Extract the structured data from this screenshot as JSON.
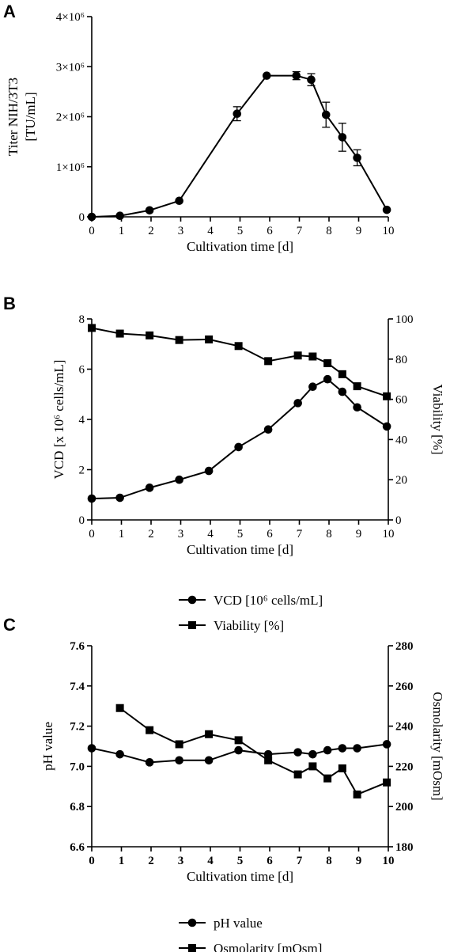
{
  "chart_data": [
    {
      "panel": "A",
      "type": "line",
      "xlabel": "Cultivation time [d]",
      "ylabel_lines": [
        "Titer NIH/3T3",
        "[TU/mL]"
      ],
      "xlim": [
        0,
        10
      ],
      "ylim": [
        0,
        4000000
      ],
      "xticks": [
        0,
        1,
        2,
        3,
        4,
        5,
        6,
        7,
        8,
        9,
        10
      ],
      "yticks": [
        {
          "value": 0,
          "label": "0"
        },
        {
          "value": 1000000,
          "label": "1×10⁶"
        },
        {
          "value": 2000000,
          "label": "2×10⁶"
        },
        {
          "value": 3000000,
          "label": "3×10⁶"
        },
        {
          "value": 4000000,
          "label": "4×10⁶"
        }
      ],
      "series": [
        {
          "marker": "circle",
          "x": [
            0,
            0.95,
            1.95,
            2.95,
            4.9,
            5.9,
            6.9,
            7.4,
            7.9,
            8.45,
            8.95,
            9.95
          ],
          "y": [
            0,
            20000,
            130000,
            320000,
            2060000,
            2820000,
            2820000,
            2740000,
            2040000,
            1590000,
            1180000,
            140000
          ],
          "err": [
            0,
            0,
            0,
            0,
            140000,
            0,
            80000,
            120000,
            250000,
            280000,
            160000,
            0
          ]
        }
      ]
    },
    {
      "panel": "B",
      "type": "line",
      "xlabel": "Cultivation time [d]",
      "ylabel": "VCD [x 10⁶ cells/mL]",
      "y2label": "Viability [%]",
      "xlim": [
        0,
        10
      ],
      "ylim": [
        0,
        8
      ],
      "y2lim": [
        0,
        100
      ],
      "xticks": [
        0,
        1,
        2,
        3,
        4,
        5,
        6,
        7,
        8,
        9,
        10
      ],
      "yticks": [
        0,
        2,
        4,
        6,
        8
      ],
      "y2ticks": [
        0,
        20,
        40,
        60,
        80,
        100
      ],
      "series": [
        {
          "name": "VCD [10⁶ cells/mL]",
          "marker": "circle",
          "axis": "left",
          "x": [
            0,
            0.95,
            1.95,
            2.95,
            3.95,
            4.95,
            5.95,
            6.95,
            7.45,
            7.95,
            8.45,
            8.95,
            9.95
          ],
          "y": [
            0.85,
            0.88,
            1.28,
            1.6,
            1.95,
            2.9,
            3.6,
            4.65,
            5.3,
            5.6,
            5.1,
            4.48,
            3.72
          ]
        },
        {
          "name": "Viability [%]",
          "marker": "square",
          "axis": "right",
          "x": [
            0,
            0.95,
            1.95,
            2.95,
            3.95,
            4.95,
            5.95,
            6.95,
            7.45,
            7.95,
            8.45,
            8.95,
            9.95
          ],
          "y": [
            95.5,
            92.7,
            91.8,
            89.5,
            89.8,
            86.5,
            79.0,
            81.8,
            81.3,
            78.0,
            72.5,
            66.5,
            61.5
          ]
        }
      ]
    },
    {
      "panel": "C",
      "type": "line",
      "xlabel": "Cultivation time [d]",
      "ylabel": "pH value",
      "y2label": "Osmolarity [mOsm]",
      "xlim": [
        0,
        10
      ],
      "ylim": [
        6.6,
        7.6
      ],
      "y2lim": [
        180,
        280
      ],
      "xticks": [
        0,
        1,
        2,
        3,
        4,
        5,
        6,
        7,
        8,
        9,
        10
      ],
      "yticks": [
        "6.6",
        "6.8",
        "7.0",
        "7.2",
        "7.4",
        "7.6"
      ],
      "y2ticks": [
        180,
        200,
        220,
        240,
        260,
        280
      ],
      "series": [
        {
          "name": "pH value",
          "marker": "circle",
          "axis": "left",
          "x": [
            0,
            0.95,
            1.95,
            2.95,
            3.95,
            4.95,
            5.95,
            6.95,
            7.45,
            7.95,
            8.45,
            8.95,
            9.95
          ],
          "y": [
            7.09,
            7.06,
            7.02,
            7.03,
            7.03,
            7.08,
            7.06,
            7.07,
            7.06,
            7.08,
            7.09,
            7.09,
            7.11
          ]
        },
        {
          "name": "Osmolarity [mOsm]",
          "marker": "square",
          "axis": "right",
          "x": [
            0.95,
            1.95,
            2.95,
            3.95,
            4.95,
            5.95,
            6.95,
            7.45,
            7.95,
            8.45,
            8.95,
            9.95
          ],
          "y": [
            249,
            238,
            231,
            236,
            233,
            223,
            216,
            220,
            214,
            219,
            206,
            212
          ]
        }
      ]
    }
  ]
}
